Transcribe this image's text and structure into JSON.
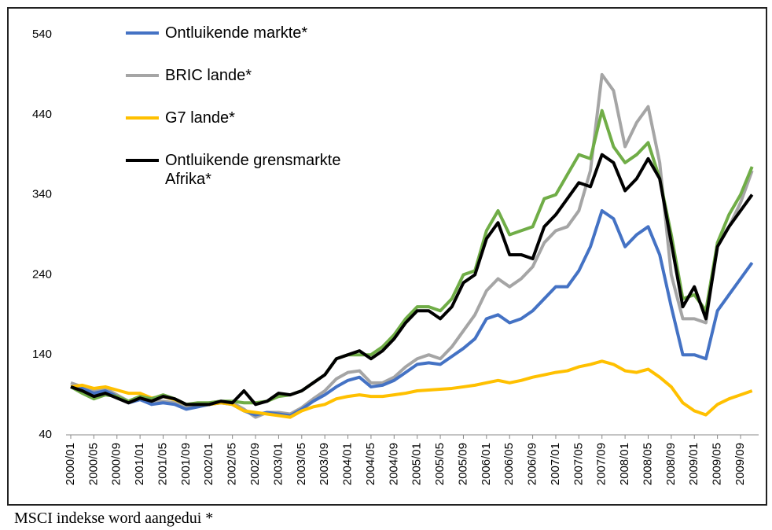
{
  "chart_data": {
    "type": "line",
    "categories": [
      "2000/01",
      null,
      "2000/05",
      null,
      "2000/09",
      null,
      "2001/01",
      null,
      "2001/05",
      null,
      "2001/09",
      null,
      "2002/01",
      null,
      "2002/05",
      null,
      "2002/09",
      null,
      "2003/01",
      null,
      "2003/05",
      null,
      "2003/09",
      null,
      "2004/01",
      null,
      "2004/05",
      null,
      "2004/09",
      null,
      "2005/01",
      null,
      "2005/05",
      null,
      "2005/09",
      null,
      "2006/01",
      null,
      "2006/05",
      null,
      "2006/09",
      null,
      "2007/01",
      null,
      "2007/05",
      null,
      "2007/09",
      null,
      "2008/01",
      null,
      "2008/05",
      null,
      "2008/09",
      null,
      "2009/01",
      null,
      "2009/05",
      null,
      "2009/09",
      null
    ],
    "series": [
      {
        "name": "Ontluikende markte*",
        "color": "#4472c4",
        "values": [
          100,
          98,
          92,
          95,
          88,
          80,
          84,
          78,
          80,
          78,
          72,
          75,
          78,
          80,
          78,
          70,
          65,
          68,
          66,
          64,
          72,
          82,
          90,
          100,
          108,
          112,
          100,
          102,
          108,
          118,
          128,
          130,
          128,
          138,
          148,
          160,
          185,
          190,
          180,
          185,
          195,
          210,
          225,
          225,
          245,
          275,
          320,
          310,
          275,
          290,
          300,
          265,
          200,
          140,
          140,
          135,
          195,
          215,
          235,
          255
        ]
      },
      {
        "name": "BRIC lande*",
        "color": "#a5a5a5",
        "values": [
          105,
          100,
          95,
          98,
          90,
          82,
          88,
          82,
          82,
          80,
          75,
          78,
          80,
          82,
          80,
          72,
          62,
          68,
          68,
          66,
          74,
          85,
          95,
          110,
          118,
          120,
          105,
          105,
          112,
          125,
          135,
          140,
          135,
          150,
          170,
          190,
          220,
          235,
          225,
          235,
          250,
          280,
          295,
          300,
          320,
          370,
          490,
          470,
          400,
          430,
          450,
          380,
          240,
          185,
          185,
          180,
          280,
          300,
          330,
          370
        ]
      },
      {
        "name": "G7 lande*",
        "color": "#ffc000",
        "values": [
          100,
          102,
          98,
          100,
          96,
          92,
          92,
          86,
          88,
          84,
          78,
          78,
          78,
          80,
          78,
          70,
          68,
          66,
          64,
          62,
          70,
          75,
          78,
          85,
          88,
          90,
          88,
          88,
          90,
          92,
          95,
          96,
          97,
          98,
          100,
          102,
          105,
          108,
          105,
          108,
          112,
          115,
          118,
          120,
          125,
          128,
          132,
          128,
          120,
          118,
          122,
          112,
          100,
          80,
          70,
          65,
          78,
          85,
          90,
          95
        ]
      },
      {
        "name": "Ontluikende grensmarkte Afrika*",
        "color": "#000000",
        "values": [
          100,
          95,
          88,
          92,
          86,
          80,
          86,
          82,
          88,
          85,
          78,
          78,
          78,
          82,
          80,
          95,
          78,
          82,
          92,
          90,
          95,
          105,
          115,
          135,
          140,
          145,
          135,
          145,
          160,
          180,
          195,
          195,
          185,
          200,
          230,
          240,
          285,
          305,
          265,
          265,
          260,
          300,
          315,
          335,
          355,
          350,
          390,
          380,
          345,
          360,
          385,
          360,
          280,
          200,
          225,
          185,
          275,
          300,
          320,
          340
        ]
      },
      {
        "color": "#70ad47",
        "values": [
          100,
          92,
          85,
          90,
          88,
          82,
          88,
          85,
          90,
          85,
          78,
          80,
          80,
          82,
          82,
          80,
          80,
          82,
          88,
          90,
          95,
          105,
          115,
          135,
          140,
          140,
          140,
          150,
          165,
          185,
          200,
          200,
          195,
          210,
          240,
          245,
          295,
          320,
          290,
          295,
          300,
          335,
          340,
          365,
          390,
          385,
          445,
          400,
          380,
          390,
          405,
          360,
          290,
          210,
          215,
          195,
          280,
          315,
          340,
          375
        ]
      }
    ],
    "ylim": [
      40,
      540
    ],
    "yticks": [
      40,
      140,
      240,
      340,
      440,
      540
    ],
    "grid": false,
    "legend": "top-left",
    "note": "MSCI indekse word aangedui *"
  }
}
